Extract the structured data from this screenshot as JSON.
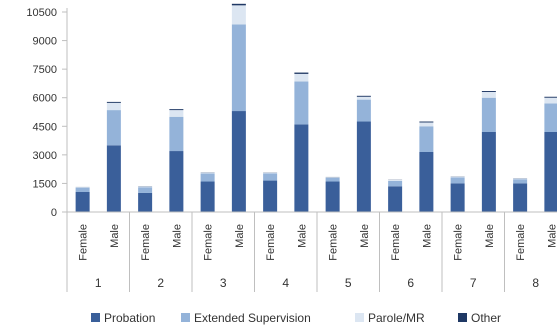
{
  "chart_data": {
    "type": "bar",
    "stacked": true,
    "title": "",
    "xlabel": "",
    "ylabel": "",
    "ylim": [
      0,
      10500
    ],
    "y_ticks": [
      0,
      1500,
      3000,
      4500,
      6000,
      7500,
      9000,
      10500
    ],
    "y_tick_labels": [
      "0",
      "1500",
      "3000",
      "4500",
      "6000",
      "7500",
      "9000",
      "10500"
    ],
    "groups": [
      "1",
      "2",
      "3",
      "4",
      "5",
      "6",
      "7",
      "8"
    ],
    "sub_categories": [
      "Female",
      "Male"
    ],
    "legend_position": "bottom",
    "grid": false,
    "series": [
      {
        "name": "Probation",
        "color": "#3A5F9A",
        "values": [
          1050,
          3500,
          1000,
          3200,
          1600,
          5300,
          1650,
          4600,
          1600,
          4750,
          1350,
          3150,
          1500,
          4200,
          1500,
          4200
        ]
      },
      {
        "name": "Extended Supervision",
        "color": "#94B3D9",
        "values": [
          230,
          1850,
          300,
          1800,
          420,
          4550,
          380,
          2250,
          200,
          1150,
          280,
          1350,
          320,
          1800,
          220,
          1500
        ]
      },
      {
        "name": "Parole/MR",
        "color": "#DCE6F2",
        "values": [
          30,
          380,
          50,
          350,
          50,
          1000,
          30,
          400,
          30,
          150,
          50,
          200,
          30,
          300,
          40,
          300
        ]
      },
      {
        "name": "Other",
        "color": "#1F3864",
        "values": [
          5,
          50,
          10,
          50,
          10,
          80,
          10,
          70,
          10,
          50,
          10,
          50,
          10,
          50,
          10,
          50
        ]
      }
    ]
  }
}
